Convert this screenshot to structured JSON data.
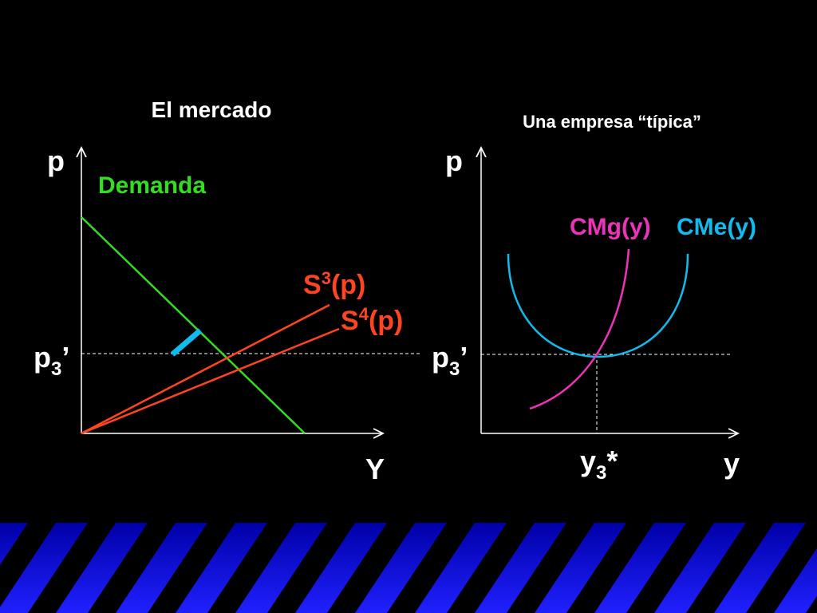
{
  "left": {
    "title": "El mercado",
    "y_axis": "p",
    "x_axis": "Y",
    "demand": "Demanda",
    "price_label": {
      "base": "p",
      "sub": "3",
      "suffix": "’"
    },
    "supply_3": {
      "base": "S",
      "sup": "3",
      "suffix": "(p)"
    },
    "supply_4": {
      "base": "S",
      "sup": "4",
      "suffix": "(p)"
    }
  },
  "right": {
    "title": "Una empresa “típica”",
    "y_axis": "p",
    "x_axis": "y",
    "marginal_cost": "CMg(y)",
    "average_cost": "CMe(y)",
    "price_label": {
      "base": "p",
      "sub": "3",
      "suffix": "’"
    },
    "output_label": {
      "base": "y",
      "sub": "3",
      "suffix": "*"
    }
  }
}
